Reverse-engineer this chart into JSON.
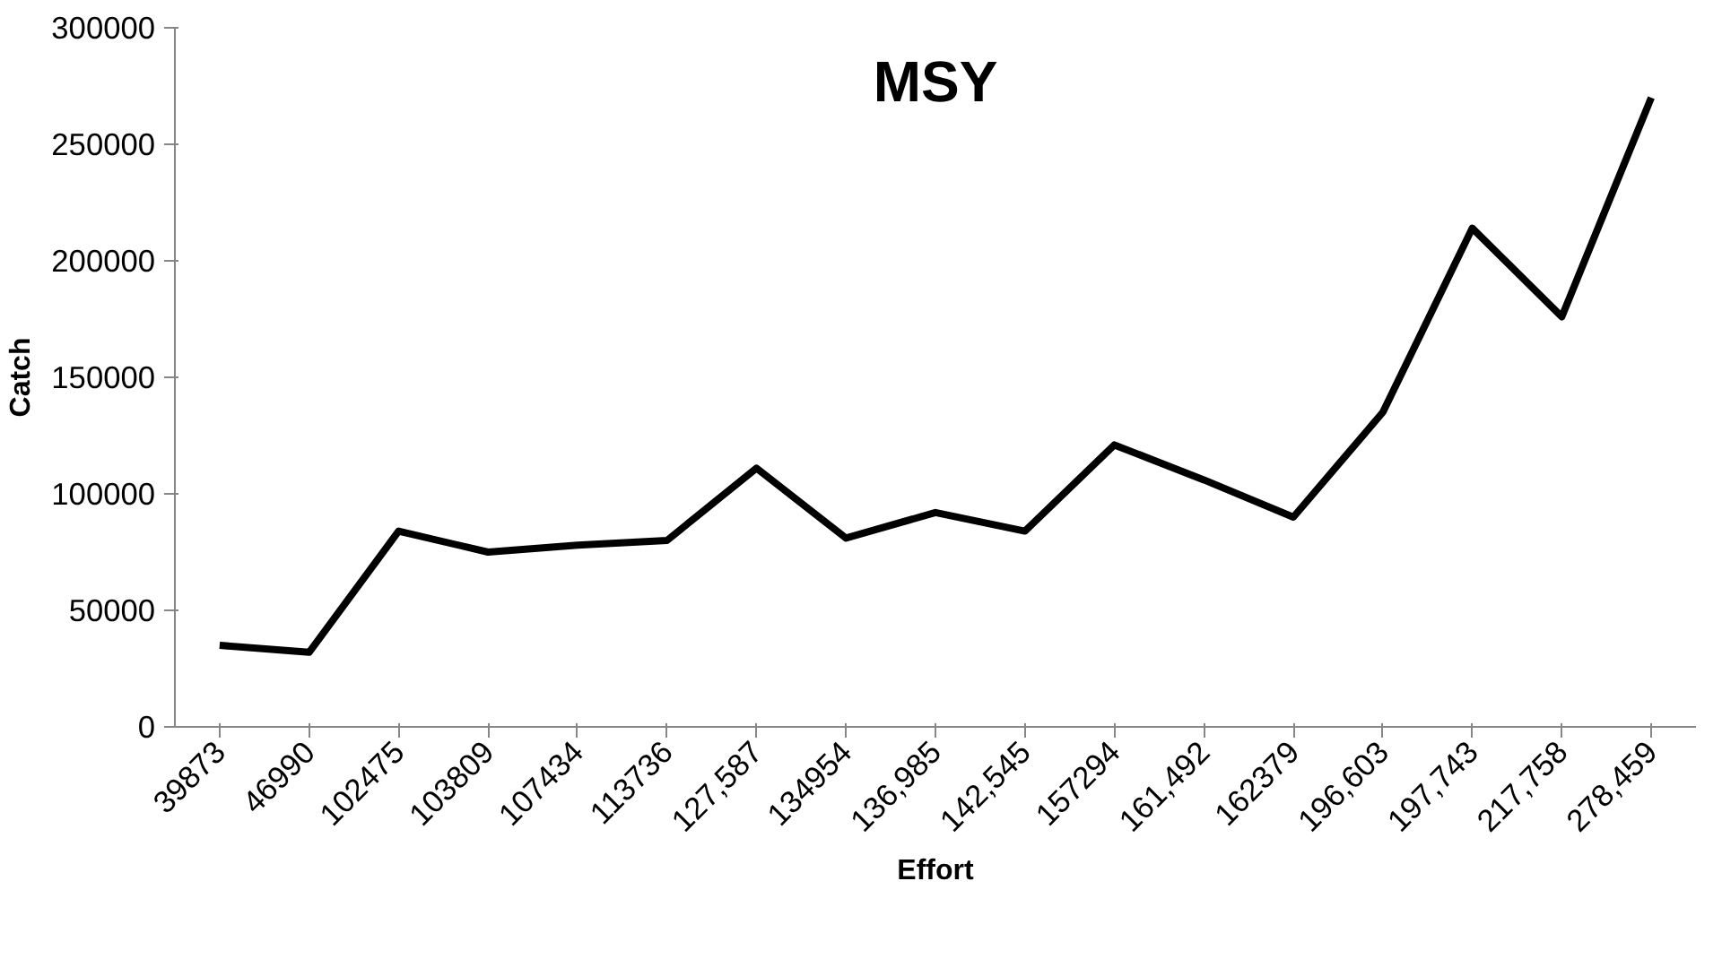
{
  "chart_data": {
    "type": "line",
    "title": "MSY",
    "xlabel": "Effort",
    "ylabel": "Catch",
    "categories": [
      "39873",
      "46990",
      "102475",
      "103809",
      "107434",
      "113736",
      "127,587",
      "134954",
      "136,985",
      "142,545",
      "157294",
      "161,492",
      "162379",
      "196,603",
      "197,743",
      "217,758",
      "278,459"
    ],
    "series": [
      {
        "color": "#000000",
        "values": [
          35000,
          32000,
          84000,
          75000,
          78000,
          80000,
          111000,
          81000,
          92000,
          84000,
          121000,
          106000,
          90000,
          135000,
          214000,
          176000,
          270000
        ]
      }
    ],
    "ylim": [
      0,
      300000
    ],
    "yticks": [
      0,
      50000,
      100000,
      150000,
      200000,
      250000,
      300000
    ]
  }
}
